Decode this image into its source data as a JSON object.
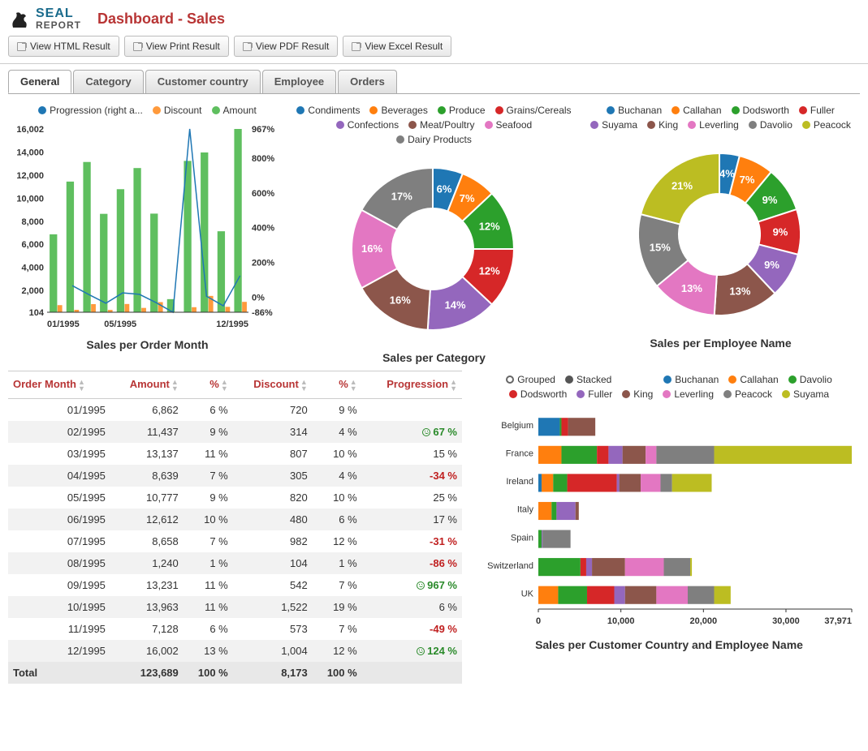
{
  "logo": {
    "seal": "SEAL",
    "report": "REPORT"
  },
  "header": {
    "title": "Dashboard - Sales"
  },
  "toolbar": {
    "html": "View HTML Result",
    "print": "View Print Result",
    "pdf": "View PDF Result",
    "excel": "View Excel Result"
  },
  "tabs": [
    {
      "label": "General",
      "active": true
    },
    {
      "label": "Category",
      "active": false
    },
    {
      "label": "Customer country",
      "active": false
    },
    {
      "label": "Employee",
      "active": false
    },
    {
      "label": "Orders",
      "active": false
    }
  ],
  "colors": {
    "blue": "#1f77b4",
    "orange": "#ff7f0e",
    "green": "#2ca02c",
    "red": "#d62728",
    "purple": "#9467bd",
    "brown": "#8c564b",
    "pink": "#e377c2",
    "gray": "#7f7f7f",
    "olive": "#bcbd22",
    "bar_green": "#5fbf5f",
    "bar_orange": "#ff9a3c",
    "line_blue": "#1f77b4",
    "header_red": "#b83535",
    "neg": "#c02020",
    "pos": "#2a8a2a"
  },
  "combo_chart": {
    "title": "Sales per Order Month",
    "legend": [
      {
        "label": "Progression (right a...",
        "color": "#1f77b4"
      },
      {
        "label": "Discount",
        "color": "#ff9a3c"
      },
      {
        "label": "Amount",
        "color": "#5fbf5f"
      }
    ],
    "months": [
      "01/1995",
      "02/1995",
      "03/1995",
      "04/1995",
      "05/1995",
      "06/1995",
      "07/1995",
      "08/1995",
      "09/1995",
      "10/1995",
      "11/1995",
      "12/1995"
    ],
    "amount": [
      6862,
      11437,
      13137,
      8639,
      10777,
      12612,
      8658,
      1240,
      13231,
      13963,
      7128,
      16002
    ],
    "discount": [
      720,
      314,
      807,
      305,
      820,
      480,
      982,
      104,
      542,
      1522,
      573,
      1004
    ],
    "progression": [
      null,
      67,
      15,
      -34,
      25,
      17,
      -31,
      -86,
      967,
      6,
      -49,
      124
    ],
    "y_left": {
      "min": 104,
      "max": 16002,
      "ticks": [
        104,
        2000,
        4000,
        6000,
        8000,
        10000,
        12000,
        14000,
        16002
      ],
      "tick_labels": [
        "104",
        "2,000",
        "4,000",
        "6,000",
        "8,000",
        "10,000",
        "12,000",
        "14,000",
        "16,002"
      ]
    },
    "y_right": {
      "min": -86,
      "max": 967,
      "ticks": [
        -86,
        0,
        200,
        400,
        600,
        800,
        967
      ],
      "tick_labels": [
        "-86%",
        "0%",
        "200%",
        "400%",
        "600%",
        "800%",
        "967%"
      ]
    },
    "x_ticks": [
      "01/1995",
      "05/1995",
      "12/1995"
    ]
  },
  "donut_category": {
    "title": "Sales per Category",
    "slices": [
      {
        "label": "Condiments",
        "pct": 6,
        "color": "#1f77b4"
      },
      {
        "label": "Beverages",
        "pct": 7,
        "color": "#ff7f0e"
      },
      {
        "label": "Produce",
        "pct": 12,
        "color": "#2ca02c"
      },
      {
        "label": "Grains/Cereals",
        "pct": 12,
        "color": "#d62728"
      },
      {
        "label": "Confections",
        "pct": 14,
        "color": "#9467bd"
      },
      {
        "label": "Meat/Poultry",
        "pct": 16,
        "color": "#8c564b"
      },
      {
        "label": "Seafood",
        "pct": 16,
        "color": "#e377c2"
      },
      {
        "label": "Dairy Products",
        "pct": 17,
        "color": "#7f7f7f"
      }
    ]
  },
  "donut_employee": {
    "title": "Sales per Employee Name",
    "slices": [
      {
        "label": "Buchanan",
        "pct": 4,
        "color": "#1f77b4"
      },
      {
        "label": "Callahan",
        "pct": 7,
        "color": "#ff7f0e"
      },
      {
        "label": "Dodsworth",
        "pct": 9,
        "color": "#2ca02c"
      },
      {
        "label": "Fuller",
        "pct": 9,
        "color": "#d62728"
      },
      {
        "label": "Suyama",
        "pct": 9,
        "color": "#9467bd"
      },
      {
        "label": "King",
        "pct": 13,
        "color": "#8c564b"
      },
      {
        "label": "Leverling",
        "pct": 13,
        "color": "#e377c2"
      },
      {
        "label": "Davolio",
        "pct": 15,
        "color": "#7f7f7f"
      },
      {
        "label": "Peacock",
        "pct": 21,
        "color": "#bcbd22"
      }
    ]
  },
  "table": {
    "columns": [
      "Order Month",
      "Amount",
      "%",
      "Discount",
      "%",
      "Progression"
    ],
    "rows": [
      [
        "01/1995",
        "6,862",
        "6 %",
        "720",
        "9 %",
        ""
      ],
      [
        "02/1995",
        "11,437",
        "9 %",
        "314",
        "4 %",
        "67 %"
      ],
      [
        "03/1995",
        "13,137",
        "11 %",
        "807",
        "10 %",
        "15 %"
      ],
      [
        "04/1995",
        "8,639",
        "7 %",
        "305",
        "4 %",
        "-34 %"
      ],
      [
        "05/1995",
        "10,777",
        "9 %",
        "820",
        "10 %",
        "25 %"
      ],
      [
        "06/1995",
        "12,612",
        "10 %",
        "480",
        "6 %",
        "17 %"
      ],
      [
        "07/1995",
        "8,658",
        "7 %",
        "982",
        "12 %",
        "-31 %"
      ],
      [
        "08/1995",
        "1,240",
        "1 %",
        "104",
        "1 %",
        "-86 %"
      ],
      [
        "09/1995",
        "13,231",
        "11 %",
        "542",
        "7 %",
        "967 %"
      ],
      [
        "10/1995",
        "13,963",
        "11 %",
        "1,522",
        "19 %",
        "6 %"
      ],
      [
        "11/1995",
        "7,128",
        "6 %",
        "573",
        "7 %",
        "-49 %"
      ],
      [
        "12/1995",
        "16,002",
        "13 %",
        "1,004",
        "12 %",
        "124 %"
      ]
    ],
    "total": [
      "Total",
      "123,689",
      "100 %",
      "8,173",
      "100 %",
      ""
    ],
    "prog_style": [
      "",
      "smile",
      "",
      "neg",
      "",
      "",
      "neg",
      "neg",
      "smile",
      "",
      "neg",
      "smile"
    ]
  },
  "stacked_bar": {
    "title": "Sales per Customer Country and Employee Name",
    "toggle": {
      "grouped": "Grouped",
      "stacked": "Stacked",
      "selected": "stacked"
    },
    "legend": [
      {
        "label": "Buchanan",
        "color": "#1f77b4"
      },
      {
        "label": "Callahan",
        "color": "#ff7f0e"
      },
      {
        "label": "Davolio",
        "color": "#2ca02c"
      },
      {
        "label": "Dodsworth",
        "color": "#d62728"
      },
      {
        "label": "Fuller",
        "color": "#9467bd"
      },
      {
        "label": "King",
        "color": "#8c564b"
      },
      {
        "label": "Leverling",
        "color": "#e377c2"
      },
      {
        "label": "Peacock",
        "color": "#7f7f7f"
      },
      {
        "label": "Suyama",
        "color": "#bcbd22"
      }
    ],
    "countries": [
      "Belgium",
      "France",
      "Ireland",
      "Italy",
      "Spain",
      "Switzerland",
      "UK"
    ],
    "data": {
      "Belgium": [
        2600,
        0,
        200,
        800,
        0,
        3300,
        0,
        0,
        0
      ],
      "France": [
        0,
        2800,
        4300,
        1400,
        1700,
        2800,
        1300,
        7000,
        16671
      ],
      "Ireland": [
        400,
        1400,
        1700,
        6000,
        300,
        2600,
        2400,
        1400,
        4800
      ],
      "Italy": [
        0,
        1600,
        600,
        0,
        2300,
        400,
        0,
        0,
        0
      ],
      "Spain": [
        0,
        0,
        400,
        0,
        100,
        0,
        0,
        3400,
        0
      ],
      "Switzerland": [
        0,
        0,
        5100,
        700,
        700,
        4000,
        4700,
        3200,
        200
      ],
      "UK": [
        0,
        2400,
        3500,
        3300,
        1300,
        3800,
        3800,
        3200,
        2000
      ]
    },
    "x_max": 37971,
    "x_ticks": [
      0,
      10000,
      20000,
      30000,
      37971
    ],
    "x_tick_labels": [
      "0",
      "10,000",
      "20,000",
      "30,000",
      "37,971"
    ]
  }
}
